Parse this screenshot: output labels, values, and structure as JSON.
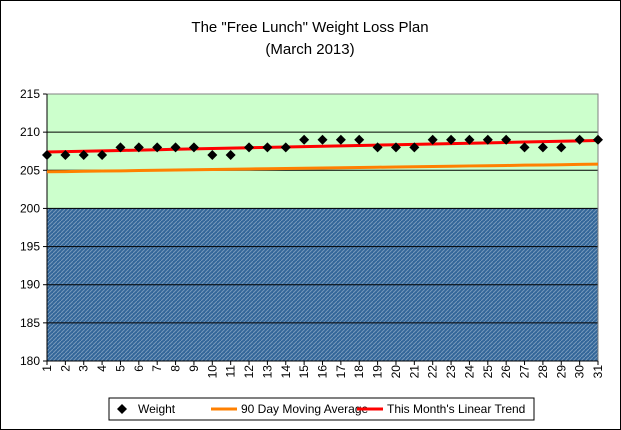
{
  "chart_data": {
    "type": "line",
    "title": "The \"Free Lunch\" Weight Loss Plan",
    "subtitle": "(March 2013)",
    "xlabel": "",
    "ylabel": "",
    "x": [
      1,
      2,
      3,
      4,
      5,
      6,
      7,
      8,
      9,
      10,
      11,
      12,
      13,
      14,
      15,
      16,
      17,
      18,
      19,
      20,
      21,
      22,
      23,
      24,
      25,
      26,
      27,
      28,
      29,
      30,
      31
    ],
    "xlim": [
      1,
      31
    ],
    "ylim": [
      180,
      215
    ],
    "ytick_step": 5,
    "ytick_labels": [
      "180",
      "185",
      "190",
      "195",
      "200",
      "205",
      "210",
      "215"
    ],
    "xtick_labels": [
      "1",
      "2",
      "3",
      "4",
      "5",
      "6",
      "7",
      "8",
      "9",
      "10",
      "11",
      "12",
      "13",
      "14",
      "15",
      "16",
      "17",
      "18",
      "19",
      "20",
      "21",
      "22",
      "23",
      "24",
      "25",
      "26",
      "27",
      "28",
      "29",
      "30",
      "31"
    ],
    "grid": true,
    "legend_position": "bottom",
    "background_bands": [
      {
        "from": 200,
        "to": 215,
        "color": "#ccffcc"
      },
      {
        "from": 180,
        "to": 200,
        "color": "#336699",
        "pattern": "hatched"
      }
    ],
    "series": [
      {
        "name": "Weight",
        "kind": "scatter",
        "marker": "diamond",
        "color": "#000000",
        "values": [
          207,
          207,
          207,
          207,
          208,
          208,
          208,
          208,
          208,
          207,
          207,
          208,
          208,
          208,
          209,
          209,
          209,
          209,
          208,
          208,
          208,
          209,
          209,
          209,
          209,
          209,
          208,
          208,
          208,
          209,
          209
        ]
      },
      {
        "name": "90 Day Moving Average",
        "kind": "line",
        "color": "#ff8000",
        "values": [
          204.8,
          204.83,
          204.87,
          204.9,
          204.93,
          204.97,
          205.0,
          205.03,
          205.07,
          205.1,
          205.13,
          205.17,
          205.2,
          205.23,
          205.27,
          205.3,
          205.33,
          205.37,
          205.4,
          205.43,
          205.47,
          205.5,
          205.53,
          205.57,
          205.6,
          205.63,
          205.67,
          205.7,
          205.73,
          205.77,
          205.8
        ]
      },
      {
        "name": "This Month's Linear Trend",
        "kind": "line",
        "color": "#ff0000",
        "values": [
          207.4,
          207.45,
          207.5,
          207.55,
          207.6,
          207.65,
          207.7,
          207.75,
          207.8,
          207.85,
          207.9,
          207.95,
          208.0,
          208.05,
          208.1,
          208.15,
          208.2,
          208.25,
          208.3,
          208.35,
          208.4,
          208.45,
          208.5,
          208.55,
          208.6,
          208.65,
          208.7,
          208.75,
          208.8,
          208.85,
          208.9
        ]
      }
    ]
  }
}
